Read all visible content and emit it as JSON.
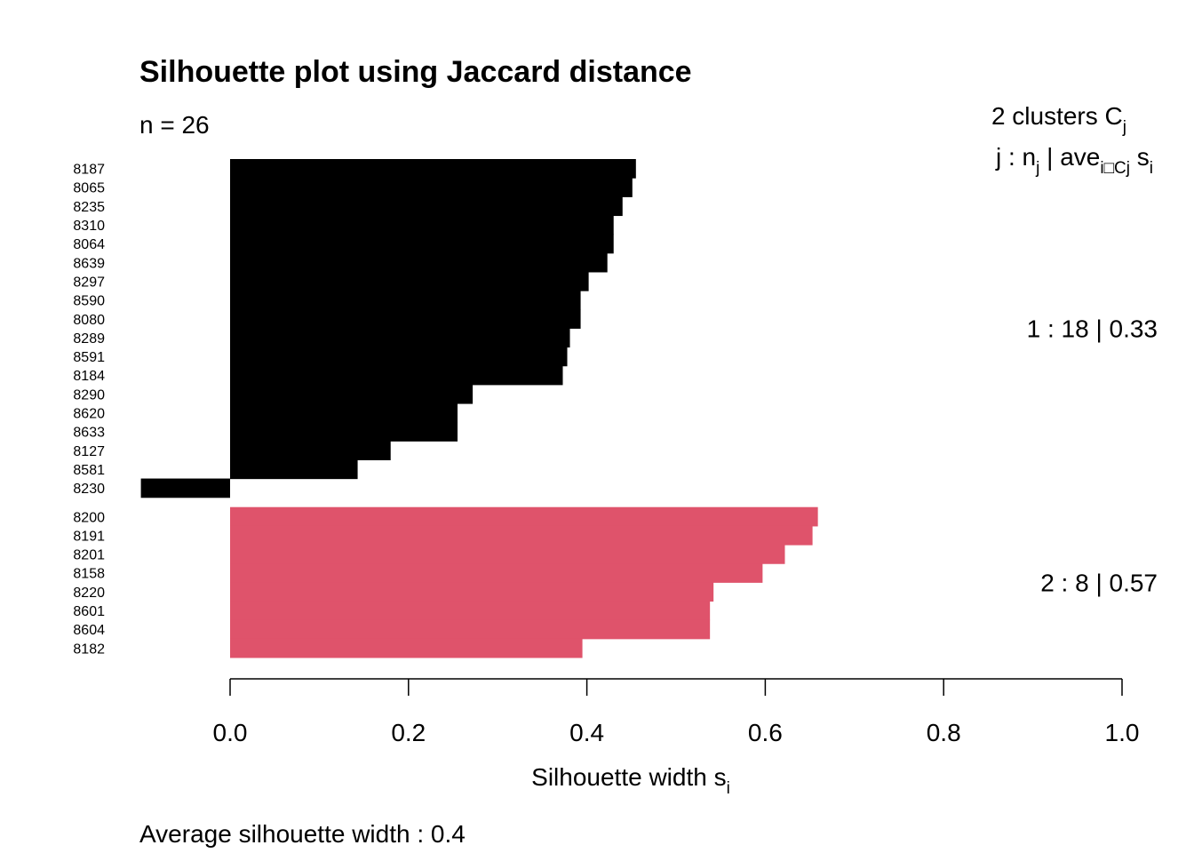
{
  "chart_data": {
    "type": "bar",
    "orientation": "horizontal",
    "title": "Silhouette plot using  Jaccard  distance",
    "n_label": "n = 26",
    "legend_header": {
      "count_text": "2  clusters  C",
      "count_sub": "j",
      "formula_j": "j :  n",
      "formula_j_sub": "j",
      "formula_ave": " | ave",
      "formula_ave_sub": "i□Cj",
      "formula_s": "  s",
      "formula_s_sub": "i"
    },
    "xlabel": "Silhouette width s",
    "xlabel_sub": "i",
    "xlim": [
      0.0,
      1.0
    ],
    "x_ticks": [
      "0.0",
      "0.2",
      "0.4",
      "0.6",
      "0.8",
      "1.0"
    ],
    "footer": "Average silhouette width :  0.4",
    "colors": {
      "cluster1": "#000000",
      "cluster2": "#df536b"
    },
    "clusters": [
      {
        "label": "1 :   18  |  0.33",
        "color": "#000000",
        "items": [
          {
            "id": "8187",
            "value": 0.455
          },
          {
            "id": "8065",
            "value": 0.451
          },
          {
            "id": "8235",
            "value": 0.44
          },
          {
            "id": "8310",
            "value": 0.43
          },
          {
            "id": "8064",
            "value": 0.43
          },
          {
            "id": "8639",
            "value": 0.423
          },
          {
            "id": "8297",
            "value": 0.402
          },
          {
            "id": "8590",
            "value": 0.393
          },
          {
            "id": "8080",
            "value": 0.393
          },
          {
            "id": "8289",
            "value": 0.381
          },
          {
            "id": "8591",
            "value": 0.378
          },
          {
            "id": "8184",
            "value": 0.373
          },
          {
            "id": "8290",
            "value": 0.272
          },
          {
            "id": "8620",
            "value": 0.255
          },
          {
            "id": "8633",
            "value": 0.255
          },
          {
            "id": "8127",
            "value": 0.18
          },
          {
            "id": "8581",
            "value": 0.143
          },
          {
            "id": "8230",
            "value": -0.1
          }
        ]
      },
      {
        "label": "2 :   8  |  0.57",
        "color": "#df536b",
        "items": [
          {
            "id": "8200",
            "value": 0.659
          },
          {
            "id": "8191",
            "value": 0.653
          },
          {
            "id": "8201",
            "value": 0.622
          },
          {
            "id": "8158",
            "value": 0.597
          },
          {
            "id": "8220",
            "value": 0.542
          },
          {
            "id": "8601",
            "value": 0.538
          },
          {
            "id": "8604",
            "value": 0.538
          },
          {
            "id": "8182",
            "value": 0.395
          }
        ]
      }
    ]
  }
}
